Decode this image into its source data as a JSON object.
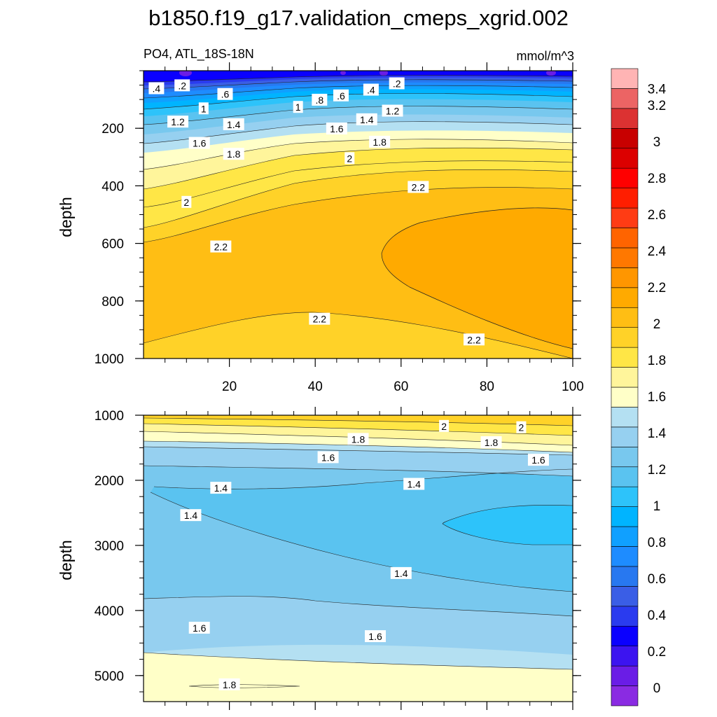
{
  "chart_data": {
    "type": "heatmap",
    "title": "b1850.f19_g17.validation_cmeps_xgrid.002",
    "subtitle_left": "PO4, ATL_18S-18N",
    "subtitle_right": "mmol/m^3",
    "ylabel": "depth",
    "colorbar": {
      "colors": [
        "#8a2be2",
        "#6a1de6",
        "#3c14f0",
        "#0a00ff",
        "#2a3bef",
        "#3a5ee6",
        "#2878f0",
        "#1e8cff",
        "#10a0ff",
        "#00b4ff",
        "#2dc3fa",
        "#5ac3f0",
        "#78c8ee",
        "#96d0f0",
        "#b4e0f2",
        "#ffffc8",
        "#fff59b",
        "#ffe646",
        "#ffd228",
        "#ffbe14",
        "#ffaa00",
        "#ff9600",
        "#ff7800",
        "#ff6400",
        "#ff3c14",
        "#ff1e00",
        "#ff0000",
        "#dc0000",
        "#c80000",
        "#dc3232",
        "#ec6464",
        "#ffb4b4"
      ],
      "tick_labels": [
        "0",
        "0.2",
        "0.4",
        "0.6",
        "0.8",
        "1",
        "1.2",
        "1.4",
        "1.6",
        "1.8",
        "2",
        "2.2",
        "2.4",
        "2.6",
        "2.8",
        "3",
        "3.2",
        "3.4"
      ]
    },
    "panels": [
      {
        "name": "upper",
        "ylim": [
          0,
          1000
        ],
        "yticks": [
          "200",
          "400",
          "600",
          "800",
          "1000"
        ],
        "xlim": [
          0,
          100
        ],
        "xticks": [
          "20",
          "40",
          "60",
          "80",
          "100"
        ],
        "contour_labels": [
          {
            "text": ".4",
            "x": 3,
            "y": 62
          },
          {
            "text": ".2",
            "x": 9,
            "y": 52
          },
          {
            "text": ".6",
            "x": 19,
            "y": 82
          },
          {
            "text": "1",
            "x": 14,
            "y": 132
          },
          {
            "text": "1",
            "x": 36,
            "y": 127
          },
          {
            "text": ".8",
            "x": 41,
            "y": 102
          },
          {
            "text": ".6",
            "x": 46,
            "y": 87
          },
          {
            "text": ".4",
            "x": 53,
            "y": 67
          },
          {
            "text": ".2",
            "x": 59,
            "y": 45
          },
          {
            "text": "1.2",
            "x": 8,
            "y": 178
          },
          {
            "text": "1.4",
            "x": 21,
            "y": 187
          },
          {
            "text": "1.4",
            "x": 52,
            "y": 170
          },
          {
            "text": "1.2",
            "x": 58,
            "y": 140
          },
          {
            "text": "1.6",
            "x": 13,
            "y": 252
          },
          {
            "text": "1.6",
            "x": 45,
            "y": 202
          },
          {
            "text": "1.8",
            "x": 21,
            "y": 290
          },
          {
            "text": "1.8",
            "x": 55,
            "y": 248
          },
          {
            "text": "2",
            "x": 48,
            "y": 305
          },
          {
            "text": "2",
            "x": 10,
            "y": 457
          },
          {
            "text": "2.2",
            "x": 64,
            "y": 405
          },
          {
            "text": "2.2",
            "x": 18,
            "y": 612
          },
          {
            "text": "2.2",
            "x": 41,
            "y": 863
          },
          {
            "text": "2.2",
            "x": 77,
            "y": 935
          }
        ]
      },
      {
        "name": "lower",
        "ylim": [
          1000,
          5400
        ],
        "yticks": [
          "1000",
          "2000",
          "3000",
          "4000",
          "5000"
        ],
        "contour_labels": [
          {
            "text": "2",
            "x": 70,
            "y": 1170
          },
          {
            "text": "2",
            "x": 88,
            "y": 1190
          },
          {
            "text": "1.8",
            "x": 50,
            "y": 1370
          },
          {
            "text": "1.8",
            "x": 81,
            "y": 1420
          },
          {
            "text": "1.6",
            "x": 43,
            "y": 1650
          },
          {
            "text": "1.6",
            "x": 92,
            "y": 1690
          },
          {
            "text": "1.4",
            "x": 18,
            "y": 2120
          },
          {
            "text": "1.4",
            "x": 63,
            "y": 2060
          },
          {
            "text": "1.4",
            "x": 11,
            "y": 2540
          },
          {
            "text": "1.4",
            "x": 60,
            "y": 3430
          },
          {
            "text": "1.6",
            "x": 13,
            "y": 4270
          },
          {
            "text": "1.6",
            "x": 54,
            "y": 4400
          },
          {
            "text": "1.8",
            "x": 20,
            "y": 5140
          }
        ]
      }
    ]
  }
}
